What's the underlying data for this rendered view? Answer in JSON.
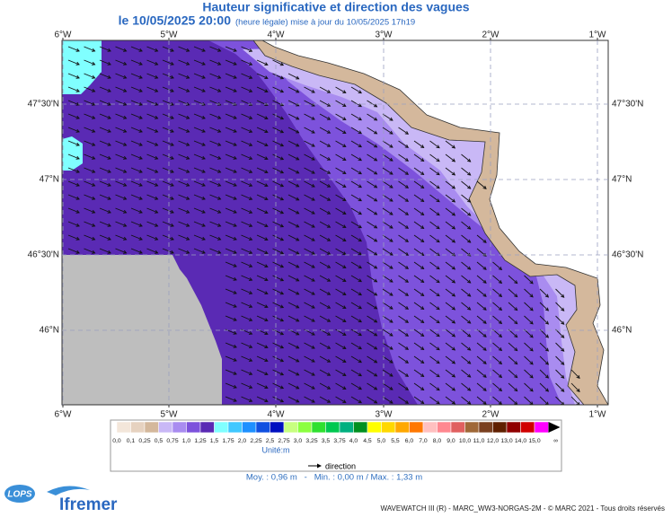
{
  "header": {
    "title": "Hauteur significative et direction des vagues",
    "date": "le 10/05/2025 20:00",
    "note": "(heure légale) mise à jour du 10/05/2025 17h19"
  },
  "map": {
    "lon_labels": [
      "6°W",
      "5°W",
      "4°W",
      "3°W",
      "2°W",
      "1°W"
    ],
    "lat_labels": [
      "47°30'N",
      "47°N",
      "46°30'N",
      "46°N"
    ]
  },
  "legend": {
    "labels": [
      "0,0",
      "0,1",
      "0,25",
      "0,5",
      "0,75",
      "1,0",
      "1,25",
      "1,5",
      "1,75",
      "2,0",
      "2,25",
      "2,5",
      "2,75",
      "3,0",
      "3,25",
      "3,5",
      "3,75",
      "4,0",
      "4,5",
      "5,0",
      "5,5",
      "6,0",
      "7,0",
      "8,0",
      "9,0",
      "10,0",
      "11,0",
      "12,0",
      "13,0",
      "14,0",
      "15,0",
      "∞"
    ],
    "colors": [
      "#f3e6da",
      "#e6d2c0",
      "#d4b89c",
      "#c9b8f6",
      "#a98cf0",
      "#7d52dc",
      "#5a2ab4",
      "#80ffff",
      "#40c8ff",
      "#1e90ff",
      "#1050e0",
      "#0010c0",
      "#c8ff80",
      "#8cff40",
      "#30e030",
      "#00c850",
      "#00b080",
      "#009020",
      "#ffff00",
      "#ffd800",
      "#ffa800",
      "#ff7800",
      "#ffc0c0",
      "#ff8890",
      "#e06060",
      "#a06838",
      "#7a4020",
      "#602000",
      "#900000",
      "#d00000",
      "#ff00ff",
      "#c00090"
    ],
    "unit": "Unité:m",
    "direction": "direction"
  },
  "stats": "Moy. : 0,96 m   -   Min. : 0,00 m / Max. : 1,33 m",
  "logos": {
    "lops": "LOPS",
    "ifremer": "Ifremer"
  },
  "footer": "WAVEWATCH III (R) - MARC_WW3-NORGAS-2M - © MARC 2021 - Tous droits réservés"
}
